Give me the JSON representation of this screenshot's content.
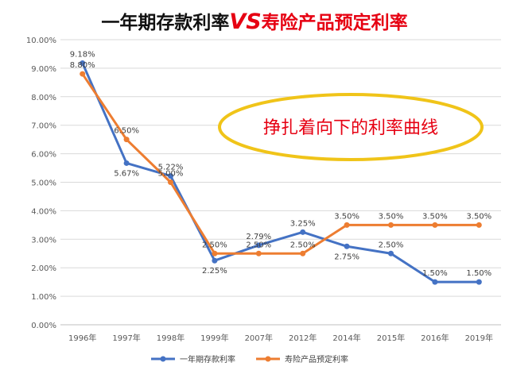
{
  "title": {
    "part1": "一年期存款利率",
    "part2": "VS",
    "part3": "寿险产品预定利率",
    "color_dark": "#111111",
    "color_red": "#e60012"
  },
  "callout": {
    "text": "挣扎着向下的利率曲线",
    "border_color": "#f0c419",
    "text_color": "#e60012"
  },
  "legend": {
    "position": "bottom"
  },
  "chart_data": {
    "type": "line",
    "title": "一年期存款利率VS寿险产品预定利率",
    "categories": [
      "1996年",
      "1997年",
      "1998年",
      "1999年",
      "2007年",
      "2012年",
      "2014年",
      "2015年",
      "2016年",
      "2019年"
    ],
    "ylim": [
      0,
      10
    ],
    "yticks": [
      "0.00%",
      "1.00%",
      "2.00%",
      "3.00%",
      "4.00%",
      "5.00%",
      "6.00%",
      "7.00%",
      "8.00%",
      "9.00%",
      "10.00%"
    ],
    "grid": true,
    "series": [
      {
        "name": "一年期存款利率",
        "color": "#4472c4",
        "values": [
          9.18,
          5.67,
          5.22,
          2.25,
          2.79,
          3.25,
          2.75,
          2.5,
          1.5,
          1.5
        ],
        "labels": [
          "9.18%",
          "5.67%",
          "5.22%",
          "2.25%",
          "2.79%",
          "3.25%",
          "2.75%",
          "2.50%",
          "1.50%",
          "1.50%"
        ]
      },
      {
        "name": "寿险产品预定利率",
        "color": "#ed7d31",
        "values": [
          8.8,
          6.5,
          5.0,
          2.5,
          2.5,
          2.5,
          3.5,
          3.5,
          3.5,
          3.5
        ],
        "labels": [
          "8.80%",
          "6.50%",
          "5.00%",
          "2.50%",
          "2.50%",
          "2.50%",
          "3.50%",
          "3.50%",
          "3.50%",
          "3.50%"
        ]
      }
    ]
  }
}
